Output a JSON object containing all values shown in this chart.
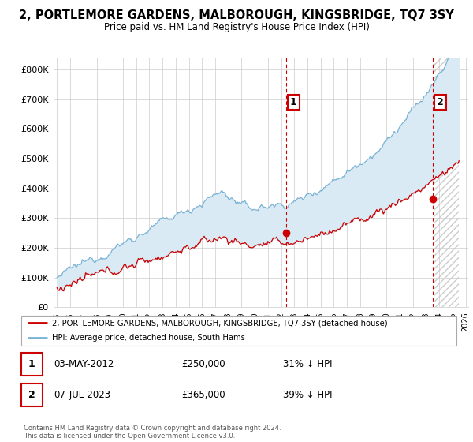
{
  "title": "2, PORTLEMORE GARDENS, MALBOROUGH, KINGSBRIDGE, TQ7 3SY",
  "subtitle": "Price paid vs. HM Land Registry's House Price Index (HPI)",
  "legend_line1": "2, PORTLEMORE GARDENS, MALBOROUGH, KINGSBRIDGE, TQ7 3SY (detached house)",
  "legend_line2": "HPI: Average price, detached house, South Hams",
  "annotation1_label": "1",
  "annotation1_date": "03-MAY-2012",
  "annotation1_price": "£250,000",
  "annotation1_hpi": "31% ↓ HPI",
  "annotation2_label": "2",
  "annotation2_date": "07-JUL-2023",
  "annotation2_price": "£365,000",
  "annotation2_hpi": "39% ↓ HPI",
  "footer": "Contains HM Land Registry data © Crown copyright and database right 2024.\nThis data is licensed under the Open Government Licence v3.0.",
  "hpi_color": "#7ab3d4",
  "hpi_fill_color": "#daeaf5",
  "price_color": "#cc0000",
  "vline_color": "#cc0000",
  "ylim": [
    0,
    840000
  ],
  "yticks": [
    0,
    100000,
    200000,
    300000,
    400000,
    500000,
    600000,
    700000,
    800000
  ],
  "start_year": 1995,
  "end_year": 2026,
  "transaction1_year": 2012.37,
  "transaction2_year": 2023.52,
  "transaction1_price": 250000,
  "transaction2_price": 365000
}
